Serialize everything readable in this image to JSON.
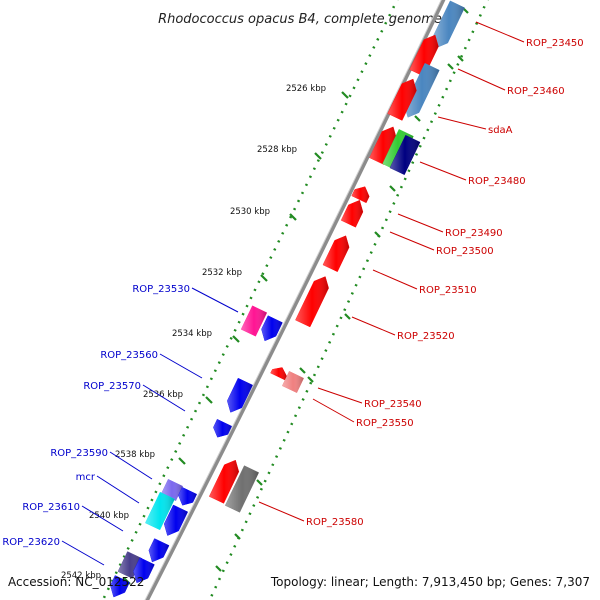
{
  "title": "Rhodococcus opacus B4, complete genome",
  "footer": {
    "accession": "Accession: NC_012522",
    "topology": "Topology: linear; Length: 7,913,450 bp; Genes: 7,307"
  },
  "colors": {
    "red": "#ff0000",
    "steelblue": "#4a86c0",
    "blue": "#0000ee",
    "green": "#33cc33",
    "navy": "#000080",
    "pink": "#ff1493",
    "salmon": "#f08080",
    "gray": "#707070",
    "cyan": "#00e5ee",
    "slateblue": "#7b68ee",
    "darkslate": "#483d8b",
    "tick": "#228b22",
    "label_red": "#cc0000",
    "label_blue": "#0000cc"
  },
  "ticks": [
    {
      "kbp": 2526,
      "label": "2526 kbp"
    },
    {
      "kbp": 2528,
      "label": "2528 kbp"
    },
    {
      "kbp": 2530,
      "label": "2530 kbp"
    },
    {
      "kbp": 2532,
      "label": "2532 kbp"
    },
    {
      "kbp": 2534,
      "label": "2534 kbp"
    },
    {
      "kbp": 2536,
      "label": "2536 kbp"
    },
    {
      "kbp": 2538,
      "label": "2538 kbp"
    },
    {
      "kbp": 2540,
      "label": "2540 kbp"
    },
    {
      "kbp": 2542,
      "label": "2542 kbp"
    }
  ],
  "genes": [
    {
      "id": "ROP_23450",
      "label": "ROP_23450",
      "strand": "fwd"
    },
    {
      "id": "ROP_23460",
      "label": "ROP_23460",
      "strand": "fwd"
    },
    {
      "id": "sdaA",
      "label": "sdaA",
      "strand": "fwd"
    },
    {
      "id": "ROP_23480",
      "label": "ROP_23480",
      "strand": "fwd"
    },
    {
      "id": "ROP_23490",
      "label": "ROP_23490",
      "strand": "fwd"
    },
    {
      "id": "ROP_23500",
      "label": "ROP_23500",
      "strand": "fwd"
    },
    {
      "id": "ROP_23510",
      "label": "ROP_23510",
      "strand": "fwd"
    },
    {
      "id": "ROP_23520",
      "label": "ROP_23520",
      "strand": "fwd"
    },
    {
      "id": "ROP_23530",
      "label": "ROP_23530",
      "strand": "rev"
    },
    {
      "id": "ROP_23540",
      "label": "ROP_23540",
      "strand": "fwd"
    },
    {
      "id": "ROP_23550",
      "label": "ROP_23550",
      "strand": "fwd"
    },
    {
      "id": "ROP_23560",
      "label": "ROP_23560",
      "strand": "rev"
    },
    {
      "id": "ROP_23570",
      "label": "ROP_23570",
      "strand": "rev"
    },
    {
      "id": "ROP_23580",
      "label": "ROP_23580",
      "strand": "fwd"
    },
    {
      "id": "ROP_23590",
      "label": "ROP_23590",
      "strand": "rev"
    },
    {
      "id": "mcr",
      "label": "mcr",
      "strand": "rev"
    },
    {
      "id": "ROP_23610",
      "label": "ROP_23610",
      "strand": "rev"
    },
    {
      "id": "ROP_23620",
      "label": "ROP_23620",
      "strand": "rev"
    }
  ]
}
